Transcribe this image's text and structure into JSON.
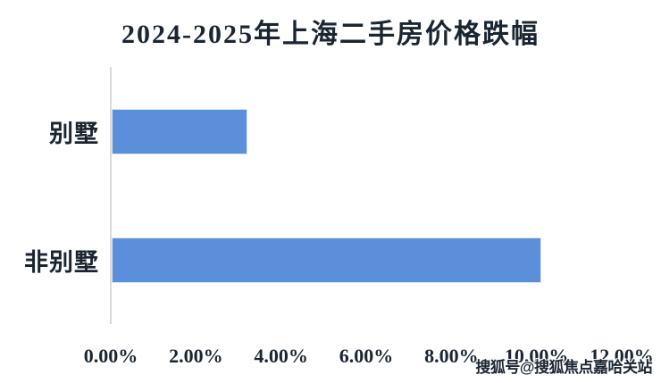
{
  "watermark": "搜狐号@搜狐焦点嘉哈关站",
  "chart_data": {
    "type": "bar",
    "orientation": "horizontal",
    "title": "2024-2025年上海二手房价格跌幅",
    "categories": [
      "别墅",
      "非别墅"
    ],
    "values": [
      3.2,
      10.1
    ],
    "value_unit": "%",
    "xlabel": "",
    "ylabel": "",
    "xlim": [
      0,
      12
    ],
    "x_ticks": [
      "0.00%",
      "2.00%",
      "4.00%",
      "6.00%",
      "8.00%",
      "10.00%",
      "12.00%"
    ],
    "grid": false,
    "legend": false,
    "background": "#ffffff",
    "bar_color": "#5b8fd9",
    "bar_border_color": "#dce6f5",
    "axis_line_color": "#d9d9d9",
    "text_color": "#1b2531"
  }
}
